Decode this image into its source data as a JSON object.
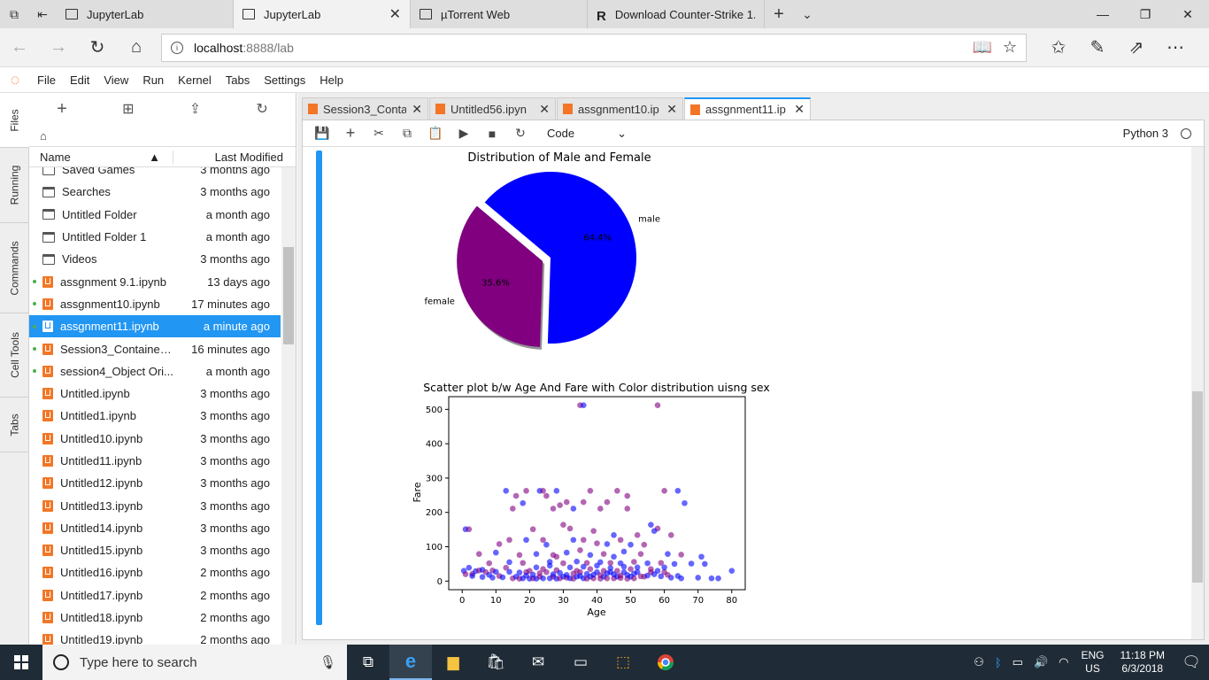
{
  "browser": {
    "tabs": [
      {
        "label": "JupyterLab",
        "active": false
      },
      {
        "label": "JupyterLab",
        "active": true
      },
      {
        "label": "µTorrent Web",
        "active": false
      },
      {
        "label": "Download Counter-Strike 1.",
        "active": false
      }
    ],
    "url_host": "localhost",
    "url_path": ":8888/lab"
  },
  "menu": [
    "File",
    "Edit",
    "View",
    "Run",
    "Kernel",
    "Tabs",
    "Settings",
    "Help"
  ],
  "sidebar_tabs": [
    "Files",
    "Running",
    "Commands",
    "Cell Tools",
    "Tabs"
  ],
  "filebrowser": {
    "col_name": "Name",
    "col_modified": "Last Modified",
    "files": [
      {
        "name": "Saved Games",
        "modified": "3 months ago",
        "type": "folder",
        "running": false,
        "selected": false
      },
      {
        "name": "Searches",
        "modified": "3 months ago",
        "type": "folder",
        "running": false,
        "selected": false
      },
      {
        "name": "Untitled Folder",
        "modified": "a month ago",
        "type": "folder",
        "running": false,
        "selected": false
      },
      {
        "name": "Untitled Folder 1",
        "modified": "a month ago",
        "type": "folder",
        "running": false,
        "selected": false
      },
      {
        "name": "Videos",
        "modified": "3 months ago",
        "type": "folder",
        "running": false,
        "selected": false
      },
      {
        "name": "assgnment 9.1.ipynb",
        "modified": "13 days ago",
        "type": "notebook",
        "running": true,
        "selected": false
      },
      {
        "name": "assgnment10.ipynb",
        "modified": "17 minutes ago",
        "type": "notebook",
        "running": true,
        "selected": false
      },
      {
        "name": "assgnment11.ipynb",
        "modified": "a minute ago",
        "type": "notebook",
        "running": true,
        "selected": true
      },
      {
        "name": "Session3_Containers...",
        "modified": "16 minutes ago",
        "type": "notebook",
        "running": true,
        "selected": false
      },
      {
        "name": "session4_Object Ori...",
        "modified": "a month ago",
        "type": "notebook",
        "running": true,
        "selected": false
      },
      {
        "name": "Untitled.ipynb",
        "modified": "3 months ago",
        "type": "notebook",
        "running": false,
        "selected": false
      },
      {
        "name": "Untitled1.ipynb",
        "modified": "3 months ago",
        "type": "notebook",
        "running": false,
        "selected": false
      },
      {
        "name": "Untitled10.ipynb",
        "modified": "3 months ago",
        "type": "notebook",
        "running": false,
        "selected": false
      },
      {
        "name": "Untitled11.ipynb",
        "modified": "3 months ago",
        "type": "notebook",
        "running": false,
        "selected": false
      },
      {
        "name": "Untitled12.ipynb",
        "modified": "3 months ago",
        "type": "notebook",
        "running": false,
        "selected": false
      },
      {
        "name": "Untitled13.ipynb",
        "modified": "3 months ago",
        "type": "notebook",
        "running": false,
        "selected": false
      },
      {
        "name": "Untitled14.ipynb",
        "modified": "3 months ago",
        "type": "notebook",
        "running": false,
        "selected": false
      },
      {
        "name": "Untitled15.ipynb",
        "modified": "3 months ago",
        "type": "notebook",
        "running": false,
        "selected": false
      },
      {
        "name": "Untitled16.ipynb",
        "modified": "2 months ago",
        "type": "notebook",
        "running": false,
        "selected": false
      },
      {
        "name": "Untitled17.ipynb",
        "modified": "2 months ago",
        "type": "notebook",
        "running": false,
        "selected": false
      },
      {
        "name": "Untitled18.ipynb",
        "modified": "2 months ago",
        "type": "notebook",
        "running": false,
        "selected": false
      },
      {
        "name": "Untitled19.ipynb",
        "modified": "2 months ago",
        "type": "notebook",
        "running": false,
        "selected": false
      }
    ]
  },
  "notebook_tabs": [
    {
      "label": "Session3_Conta",
      "active": false
    },
    {
      "label": "Untitled56.ipyn",
      "active": false
    },
    {
      "label": "assgnment10.ip",
      "active": false
    },
    {
      "label": "assgnment11.ip",
      "active": true
    }
  ],
  "toolbar": {
    "cell_type": "Code",
    "kernel": "Python 3"
  },
  "chart_data": [
    {
      "type": "pie",
      "title": "Distribution of Male and Female",
      "labels": [
        "male",
        "female"
      ],
      "values": [
        64.4,
        35.6
      ],
      "autopct": [
        "64.4%",
        "35.6%"
      ],
      "explode": [
        0,
        0.1
      ],
      "colors": [
        "#0000ff",
        "#800080"
      ]
    },
    {
      "type": "scatter",
      "title": "Scatter plot b/w Age And Fare with Color distribution uisng sex",
      "xlabel": "Age",
      "ylabel": "Fare",
      "xticks": [
        0,
        10,
        20,
        30,
        40,
        50,
        60,
        70,
        80
      ],
      "yticks": [
        0,
        100,
        200,
        300,
        400,
        500
      ],
      "xlim": [
        -4,
        84
      ],
      "ylim": [
        -25,
        537
      ],
      "colors": {
        "male": "#0000ff",
        "female": "#800080"
      },
      "points": [
        [
          35,
          512,
          "f"
        ],
        [
          36,
          512,
          "m"
        ],
        [
          58,
          512,
          "f"
        ],
        [
          13,
          263,
          "m"
        ],
        [
          19,
          263,
          "f"
        ],
        [
          23,
          263,
          "m"
        ],
        [
          24,
          263,
          "f"
        ],
        [
          28,
          263,
          "m"
        ],
        [
          38,
          263,
          "f"
        ],
        [
          46,
          263,
          "f"
        ],
        [
          49,
          248,
          "f"
        ],
        [
          60,
          263,
          "f"
        ],
        [
          64,
          263,
          "m"
        ],
        [
          16,
          248,
          "f"
        ],
        [
          25,
          248,
          "f"
        ],
        [
          31,
          230,
          "f"
        ],
        [
          36,
          230,
          "f"
        ],
        [
          43,
          230,
          "f"
        ],
        [
          15,
          211,
          "f"
        ],
        [
          29,
          221,
          "f"
        ],
        [
          33,
          211,
          "m"
        ],
        [
          49,
          211,
          "f"
        ],
        [
          66,
          227,
          "m"
        ],
        [
          18,
          227,
          "m"
        ],
        [
          27,
          211,
          "f"
        ],
        [
          41,
          211,
          "f"
        ],
        [
          1,
          151,
          "m"
        ],
        [
          2,
          151,
          "f"
        ],
        [
          58,
          153,
          "f"
        ],
        [
          56,
          164,
          "m"
        ],
        [
          30,
          164,
          "f"
        ],
        [
          32,
          153,
          "f"
        ],
        [
          21,
          151,
          "f"
        ],
        [
          39,
          146,
          "f"
        ],
        [
          45,
          134,
          "m"
        ],
        [
          52,
          134,
          "f"
        ],
        [
          57,
          146,
          "m"
        ],
        [
          62,
          134,
          "f"
        ],
        [
          14,
          120,
          "f"
        ],
        [
          19,
          120,
          "m"
        ],
        [
          24,
          120,
          "f"
        ],
        [
          33,
          120,
          "m"
        ],
        [
          36,
          120,
          "f"
        ],
        [
          47,
          120,
          "f"
        ],
        [
          50,
          106,
          "m"
        ],
        [
          54,
          106,
          "f"
        ],
        [
          25,
          106,
          "m"
        ],
        [
          40,
          110,
          "f"
        ],
        [
          43,
          108,
          "m"
        ],
        [
          11,
          108,
          "f"
        ],
        [
          5,
          79,
          "f"
        ],
        [
          10,
          83,
          "m"
        ],
        [
          17,
          76,
          "f"
        ],
        [
          22,
          79,
          "m"
        ],
        [
          27,
          76,
          "f"
        ],
        [
          31,
          83,
          "m"
        ],
        [
          35,
          90,
          "f"
        ],
        [
          38,
          76,
          "m"
        ],
        [
          42,
          79,
          "f"
        ],
        [
          48,
          86,
          "m"
        ],
        [
          53,
          79,
          "f"
        ],
        [
          61,
          79,
          "m"
        ],
        [
          65,
          77,
          "f"
        ],
        [
          71,
          71,
          "m"
        ],
        [
          28,
          71,
          "f"
        ],
        [
          45,
          71,
          "m"
        ],
        [
          8,
          52,
          "f"
        ],
        [
          14,
          55,
          "m"
        ],
        [
          18,
          53,
          "f"
        ],
        [
          26,
          56,
          "m"
        ],
        [
          30,
          52,
          "f"
        ],
        [
          34,
          57,
          "m"
        ],
        [
          37,
          53,
          "f"
        ],
        [
          41,
          55,
          "m"
        ],
        [
          44,
          53,
          "f"
        ],
        [
          47,
          52,
          "m"
        ],
        [
          51,
          56,
          "f"
        ],
        [
          55,
          52,
          "m"
        ],
        [
          59,
          53,
          "f"
        ],
        [
          63,
          50,
          "m"
        ],
        [
          68,
          51,
          "m"
        ],
        [
          72,
          50,
          "m"
        ],
        [
          80,
          30,
          "m"
        ],
        [
          0.5,
          30,
          "m"
        ],
        [
          1,
          20,
          "f"
        ],
        [
          2,
          39,
          "m"
        ],
        [
          3,
          21,
          "f"
        ],
        [
          4,
          29,
          "m"
        ],
        [
          5,
          31,
          "f"
        ],
        [
          6,
          33,
          "m"
        ],
        [
          7,
          26,
          "f"
        ],
        [
          8,
          18,
          "m"
        ],
        [
          9,
          31,
          "f"
        ],
        [
          10,
          27,
          "m"
        ],
        [
          11,
          15,
          "f"
        ],
        [
          12,
          11,
          "m"
        ],
        [
          13,
          39,
          "f"
        ],
        [
          14,
          27,
          "m"
        ],
        [
          15,
          8,
          "f"
        ],
        [
          16,
          13,
          "m"
        ],
        [
          17,
          7,
          "f"
        ],
        [
          18,
          8,
          "m"
        ],
        [
          19,
          26,
          "f"
        ],
        [
          20,
          7,
          "m"
        ],
        [
          21,
          8,
          "f"
        ],
        [
          22,
          7,
          "m"
        ],
        [
          23,
          13,
          "f"
        ],
        [
          24,
          8,
          "m"
        ],
        [
          25,
          26,
          "f"
        ],
        [
          26,
          8,
          "m"
        ],
        [
          27,
          13,
          "f"
        ],
        [
          28,
          7,
          "m"
        ],
        [
          29,
          8,
          "f"
        ],
        [
          30,
          13,
          "m"
        ],
        [
          31,
          10,
          "f"
        ],
        [
          32,
          8,
          "m"
        ],
        [
          33,
          7,
          "f"
        ],
        [
          34,
          13,
          "m"
        ],
        [
          35,
          26,
          "f"
        ],
        [
          36,
          8,
          "m"
        ],
        [
          37,
          7,
          "f"
        ],
        [
          38,
          13,
          "m"
        ],
        [
          39,
          8,
          "f"
        ],
        [
          40,
          26,
          "m"
        ],
        [
          41,
          7,
          "f"
        ],
        [
          42,
          13,
          "m"
        ],
        [
          43,
          8,
          "f"
        ],
        [
          44,
          26,
          "m"
        ],
        [
          45,
          8,
          "f"
        ],
        [
          46,
          13,
          "m"
        ],
        [
          47,
          9,
          "f"
        ],
        [
          48,
          26,
          "m"
        ],
        [
          49,
          7,
          "f"
        ],
        [
          50,
          13,
          "m"
        ],
        [
          51,
          8,
          "f"
        ],
        [
          52,
          26,
          "m"
        ],
        [
          54,
          13,
          "f"
        ],
        [
          55,
          16,
          "m"
        ],
        [
          56,
          26,
          "f"
        ],
        [
          58,
          30,
          "m"
        ],
        [
          60,
          26,
          "f"
        ],
        [
          62,
          10,
          "m"
        ],
        [
          64,
          15,
          "m"
        ],
        [
          65,
          8,
          "m"
        ],
        [
          70,
          10,
          "m"
        ],
        [
          74,
          8,
          "m"
        ],
        [
          76,
          8,
          "m"
        ],
        [
          20,
          30,
          "f"
        ],
        [
          22,
          40,
          "m"
        ],
        [
          24,
          35,
          "f"
        ],
        [
          26,
          45,
          "m"
        ],
        [
          28,
          32,
          "f"
        ],
        [
          32,
          40,
          "m"
        ],
        [
          34,
          30,
          "f"
        ],
        [
          36,
          42,
          "m"
        ],
        [
          38,
          35,
          "f"
        ],
        [
          40,
          45,
          "m"
        ],
        [
          42,
          30,
          "f"
        ],
        [
          44,
          38,
          "m"
        ],
        [
          46,
          30,
          "f"
        ],
        [
          48,
          42,
          "m"
        ],
        [
          50,
          35,
          "f"
        ],
        [
          52,
          40,
          "m"
        ],
        [
          56,
          35,
          "f"
        ],
        [
          60,
          40,
          "m"
        ],
        [
          3,
          15,
          "m"
        ],
        [
          6,
          12,
          "m"
        ],
        [
          9,
          10,
          "m"
        ],
        [
          17,
          25,
          "m"
        ],
        [
          19,
          16,
          "m"
        ],
        [
          21,
          19,
          "m"
        ],
        [
          23,
          23,
          "f"
        ],
        [
          27,
          20,
          "m"
        ],
        [
          29,
          24,
          "m"
        ],
        [
          31,
          18,
          "m"
        ],
        [
          33,
          22,
          "f"
        ],
        [
          35,
          15,
          "m"
        ],
        [
          37,
          21,
          "m"
        ],
        [
          39,
          19,
          "m"
        ],
        [
          41,
          17,
          "f"
        ],
        [
          43,
          23,
          "m"
        ],
        [
          45,
          20,
          "m"
        ],
        [
          47,
          16,
          "f"
        ],
        [
          49,
          18,
          "m"
        ],
        [
          51,
          22,
          "m"
        ],
        [
          53,
          14,
          "f"
        ],
        [
          57,
          20,
          "m"
        ],
        [
          59,
          14,
          "m"
        ],
        [
          61,
          18,
          "f"
        ]
      ]
    }
  ],
  "taskbar": {
    "search_placeholder": "Type here to search",
    "lang_top": "ENG",
    "lang_bottom": "US",
    "time": "11:18 PM",
    "date": "6/3/2018"
  }
}
